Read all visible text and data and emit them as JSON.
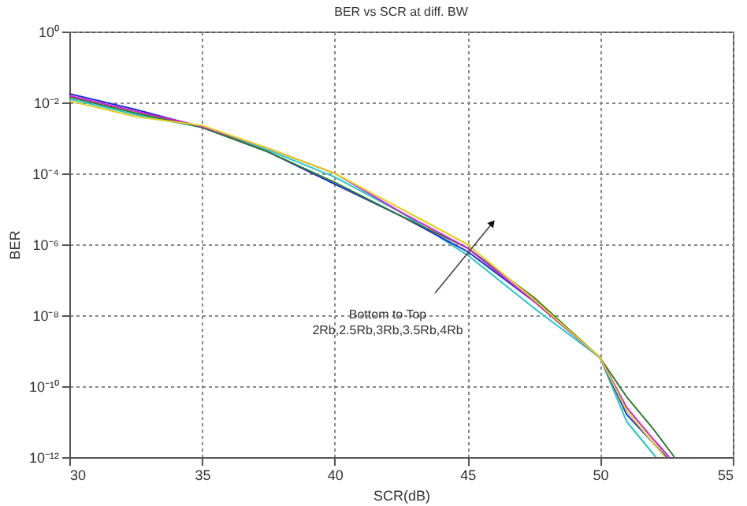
{
  "chart_data": {
    "type": "line",
    "title": "BER vs SCR at diff. BW",
    "xlabel": "SCR(dB)",
    "ylabel": "BER",
    "log": "y",
    "grid": true,
    "legend": false,
    "marker": "none",
    "line_style": "solid",
    "xlim": [
      30,
      55
    ],
    "xticks": [
      30,
      35,
      40,
      45,
      50,
      55
    ],
    "ylim": [
      1e-12,
      1
    ],
    "yticks": [
      {
        "value": 1,
        "label": "10⁰"
      },
      {
        "value": 0.01,
        "label": "10⁻²"
      },
      {
        "value": 0.0001,
        "label": "10⁻⁴"
      },
      {
        "value": 1e-06,
        "label": "10⁻⁶"
      },
      {
        "value": 1e-08,
        "label": "10⁻⁸"
      },
      {
        "value": 1e-10,
        "label": "10⁻¹⁰"
      },
      {
        "value": 1e-12,
        "label": "10⁻¹²"
      }
    ],
    "annotations": [
      "Bottom to Top\n2Rb,2.5Rb,3Rb,3.5Rb,4Rb"
    ],
    "series": [
      {
        "color": "#22c8c8",
        "x": [
          30,
          32.5,
          35,
          37.5,
          40,
          42.5,
          45,
          47.5,
          50,
          51,
          52.1
        ],
        "values": [
          0.0125,
          0.0045,
          0.002,
          0.00045,
          7.9e-05,
          7.9e-06,
          5e-07,
          1.6e-08,
          6.3e-10,
          1e-11,
          1e-12
        ]
      },
      {
        "color": "#1f2fd0",
        "x": [
          30,
          32.5,
          35,
          37.5,
          40,
          42.5,
          45,
          47.5,
          50,
          51,
          52,
          52.5
        ],
        "values": [
          0.0175,
          0.0063,
          0.002,
          0.0004,
          5e-05,
          6.3e-06,
          6.3e-07,
          2.5e-08,
          6.3e-10,
          1.6e-11,
          2.5e-12,
          1e-12
        ]
      },
      {
        "color": "#2e7d2e",
        "x": [
          30,
          32.5,
          35,
          37.5,
          40,
          42.5,
          45,
          47.5,
          50,
          51,
          52,
          52.8
        ],
        "values": [
          0.0141,
          0.005,
          0.002,
          0.0004,
          5.6e-05,
          6.3e-06,
          7.9e-07,
          3.2e-08,
          6.3e-10,
          5e-11,
          6.3e-12,
          1e-12
        ]
      },
      {
        "color": "#d020d0",
        "x": [
          30,
          32.5,
          35,
          37.5,
          40,
          42.5,
          45,
          47.5,
          50,
          51,
          52,
          52.6
        ],
        "values": [
          0.0155,
          0.0056,
          0.0021,
          0.0005,
          0.0001,
          8e-06,
          7.9e-07,
          2.5e-08,
          6.3e-10,
          2.5e-11,
          3.2e-12,
          1e-12
        ]
      },
      {
        "color": "#e0d020",
        "x": [
          30,
          32.5,
          35,
          37.5,
          40,
          42.5,
          45,
          47.5,
          50,
          51,
          52,
          52.45
        ],
        "values": [
          0.011,
          0.004,
          0.00224,
          0.0005,
          0.0001,
          1e-05,
          1e-06,
          2.8e-08,
          6.3e-10,
          2e-11,
          2.5e-12,
          1e-12
        ]
      }
    ]
  }
}
